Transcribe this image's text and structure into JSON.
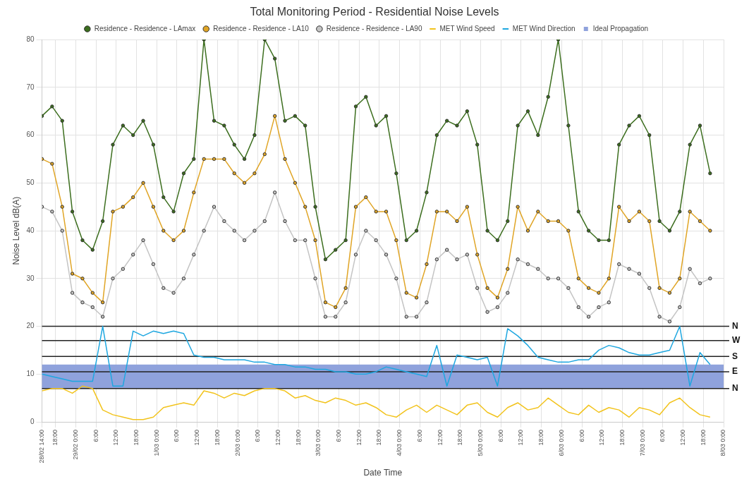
{
  "chart_data": {
    "type": "line",
    "title": "Total Monitoring Period - Residential Noise Levels",
    "xlabel": "Date Time",
    "ylabel": "Noise Level dB(A)",
    "x": [
      "--02-28T14:00",
      "--02-28T17:00",
      "--02-28T20:00",
      "--02-28T23:00",
      "--02-29T02:00",
      "--02-29T05:00",
      "--02-29T08:00",
      "--02-29T11:00",
      "--02-29T14:00",
      "--02-29T17:00",
      "--02-29T20:00",
      "--02-29T23:00",
      "--03-01T02:00",
      "--03-01T05:00",
      "--03-01T08:00",
      "--03-01T11:00",
      "--03-01T14:00",
      "--03-01T17:00",
      "--03-01T20:00",
      "--03-01T23:00",
      "--03-02T02:00",
      "--03-02T05:00",
      "--03-02T08:00",
      "--03-02T11:00",
      "--03-02T14:00",
      "--03-02T17:00",
      "--03-02T20:00",
      "--03-02T23:00",
      "--03-03T02:00",
      "--03-03T05:00",
      "--03-03T08:00",
      "--03-03T11:00",
      "--03-03T14:00",
      "--03-03T17:00",
      "--03-03T20:00",
      "--03-03T23:00",
      "--03-04T02:00",
      "--03-04T05:00",
      "--03-04T08:00",
      "--03-04T11:00",
      "--03-04T14:00",
      "--03-04T17:00",
      "--03-04T20:00",
      "--03-04T23:00",
      "--03-05T02:00",
      "--03-05T05:00",
      "--03-05T08:00",
      "--03-05T11:00",
      "--03-05T14:00",
      "--03-05T17:00",
      "--03-05T20:00",
      "--03-05T23:00",
      "--03-06T02:00",
      "--03-06T05:00",
      "--03-06T08:00",
      "--03-06T11:00",
      "--03-06T14:00",
      "--03-06T17:00",
      "--03-06T20:00",
      "--03-06T23:00",
      "--03-07T02:00",
      "--03-07T05:00",
      "--03-07T08:00",
      "--03-07T11:00",
      "--03-07T14:00",
      "--03-07T17:00",
      "--03-07T20:00"
    ],
    "series": [
      {
        "name": "Residence - Residence - LAmax",
        "color": "#3c6e1e",
        "marker": "circle",
        "values": [
          64,
          66,
          63,
          44,
          38,
          36,
          42,
          58,
          62,
          60,
          63,
          58,
          47,
          44,
          52,
          55,
          80,
          63,
          62,
          58,
          55,
          60,
          80,
          76,
          63,
          64,
          62,
          45,
          34,
          36,
          38,
          66,
          68,
          62,
          64,
          52,
          38,
          40,
          48,
          60,
          63,
          62,
          65,
          58,
          40,
          38,
          42,
          62,
          65,
          60,
          68,
          80,
          62,
          44,
          40,
          38,
          38,
          58,
          62,
          64,
          60,
          42,
          40,
          44,
          58,
          62,
          52
        ]
      },
      {
        "name": "Residence - Residence - LA10",
        "color": "#e0a526",
        "marker": "circle",
        "values": [
          55,
          54,
          45,
          31,
          30,
          27,
          25,
          44,
          45,
          47,
          50,
          45,
          40,
          38,
          40,
          48,
          55,
          55,
          55,
          52,
          50,
          52,
          56,
          64,
          55,
          50,
          45,
          38,
          25,
          24,
          28,
          45,
          47,
          44,
          44,
          38,
          27,
          26,
          33,
          44,
          44,
          42,
          45,
          35,
          28,
          26,
          32,
          45,
          40,
          44,
          42,
          42,
          40,
          30,
          28,
          27,
          30,
          45,
          42,
          44,
          42,
          28,
          27,
          30,
          44,
          42,
          40
        ]
      },
      {
        "name": "Residence - Residence - LA90",
        "color": "#c4c4c4",
        "marker": "circle",
        "values": [
          45,
          44,
          40,
          27,
          25,
          24,
          22,
          30,
          32,
          35,
          38,
          33,
          28,
          27,
          30,
          35,
          40,
          45,
          42,
          40,
          38,
          40,
          42,
          48,
          42,
          38,
          38,
          30,
          22,
          22,
          25,
          35,
          40,
          38,
          35,
          30,
          22,
          22,
          25,
          34,
          36,
          34,
          35,
          28,
          23,
          24,
          27,
          34,
          33,
          32,
          30,
          30,
          28,
          24,
          22,
          24,
          25,
          33,
          32,
          31,
          28,
          22,
          21,
          24,
          32,
          29,
          30
        ]
      },
      {
        "name": "MET Wind Speed",
        "color": "#f2c31c",
        "marker": "none",
        "values": [
          6.5,
          7,
          7,
          6,
          7.5,
          7,
          2.5,
          1.5,
          1,
          0.5,
          0.5,
          1,
          3,
          3.5,
          4,
          3.5,
          6.5,
          6,
          5,
          6,
          5.5,
          6.5,
          7,
          7,
          6.5,
          5,
          5.5,
          4.5,
          4,
          5,
          4.5,
          3.5,
          4,
          3,
          1.5,
          1,
          2.5,
          3.5,
          2,
          3.5,
          2.5,
          1.5,
          3.5,
          4,
          2,
          1,
          3,
          4,
          2.5,
          3,
          5,
          3.5,
          2,
          1.5,
          3.5,
          2,
          3,
          2.5,
          1,
          3,
          2.5,
          1.5,
          4,
          5,
          3,
          1.5,
          1
        ]
      },
      {
        "name": "MET Wind Direction",
        "color": "#1ea7e0",
        "marker": "none",
        "values": [
          10,
          9.5,
          9,
          8.5,
          8.5,
          8.5,
          20,
          7.5,
          7.5,
          19,
          18,
          19,
          18.5,
          19,
          18.5,
          14,
          13.5,
          13.5,
          13,
          13,
          13,
          12.5,
          12.5,
          12,
          12,
          11.5,
          11.5,
          11,
          11,
          10.5,
          10.5,
          10,
          10,
          10.5,
          11.5,
          11,
          10.5,
          10,
          9.5,
          16,
          7.5,
          14,
          13.5,
          13,
          13.5,
          7.5,
          19.5,
          18,
          16,
          13.5,
          13,
          12.5,
          12.5,
          13,
          13,
          15,
          16,
          15.5,
          14.5,
          14,
          14,
          14.5,
          15,
          20,
          7.5,
          14.5,
          12
        ]
      }
    ],
    "xlim": [
      "--02-28T14:00",
      "--03-08T00:00"
    ],
    "xticks": [
      {
        "value": "--02-28T14:00",
        "label": "28/02 14:00"
      },
      {
        "value": "--02-28T18:00",
        "label": "18:00"
      },
      {
        "value": "--02-29T00:00",
        "label": "29/02 0:00"
      },
      {
        "value": "--02-29T06:00",
        "label": "6:00"
      },
      {
        "value": "--02-29T12:00",
        "label": "12:00"
      },
      {
        "value": "--02-29T18:00",
        "label": "18:00"
      },
      {
        "value": "--03-01T00:00",
        "label": "1/03 0:00"
      },
      {
        "value": "--03-01T06:00",
        "label": "6:00"
      },
      {
        "value": "--03-01T12:00",
        "label": "12:00"
      },
      {
        "value": "--03-01T18:00",
        "label": "18:00"
      },
      {
        "value": "--03-02T00:00",
        "label": "2/03 0:00"
      },
      {
        "value": "--03-02T06:00",
        "label": "6:00"
      },
      {
        "value": "--03-02T12:00",
        "label": "12:00"
      },
      {
        "value": "--03-02T18:00",
        "label": "18:00"
      },
      {
        "value": "--03-03T00:00",
        "label": "3/03 0:00"
      },
      {
        "value": "--03-03T06:00",
        "label": "6:00"
      },
      {
        "value": "--03-03T12:00",
        "label": "12:00"
      },
      {
        "value": "--03-03T18:00",
        "label": "18:00"
      },
      {
        "value": "--03-04T00:00",
        "label": "4/03 0:00"
      },
      {
        "value": "--03-04T06:00",
        "label": "6:00"
      },
      {
        "value": "--03-04T12:00",
        "label": "12:00"
      },
      {
        "value": "--03-04T18:00",
        "label": "18:00"
      },
      {
        "value": "--03-05T00:00",
        "label": "5/03 0:00"
      },
      {
        "value": "--03-05T06:00",
        "label": "6:00"
      },
      {
        "value": "--03-05T12:00",
        "label": "12:00"
      },
      {
        "value": "--03-05T18:00",
        "label": "18:00"
      },
      {
        "value": "--03-06T00:00",
        "label": "6/03 0:00"
      },
      {
        "value": "--03-06T06:00",
        "label": "6:00"
      },
      {
        "value": "--03-06T12:00",
        "label": "12:00"
      },
      {
        "value": "--03-06T18:00",
        "label": "18:00"
      },
      {
        "value": "--03-07T00:00",
        "label": "7/03 0:00"
      },
      {
        "value": "--03-07T06:00",
        "label": "6:00"
      },
      {
        "value": "--03-07T12:00",
        "label": "12:00"
      },
      {
        "value": "--03-07T18:00",
        "label": "18:00"
      },
      {
        "value": "--03-08T00:00",
        "label": "8/03 0:00"
      }
    ],
    "ylim": [
      0,
      80
    ],
    "yticks": [
      0,
      10,
      20,
      30,
      40,
      50,
      60,
      70,
      80
    ],
    "ref_lines": [
      {
        "axis": "y",
        "value": 20,
        "label": "N",
        "color": "#222222"
      },
      {
        "axis": "y",
        "value": 17,
        "label": "W",
        "color": "#222222"
      },
      {
        "axis": "y",
        "value": 13.7,
        "label": "S",
        "color": "#222222"
      },
      {
        "axis": "y",
        "value": 10.5,
        "label": "E",
        "color": "#222222"
      },
      {
        "axis": "y",
        "value": 7,
        "label": "N",
        "color": "#222222"
      }
    ],
    "bands": [
      {
        "axis": "y",
        "from": 7,
        "to": 12,
        "label": "Ideal Propagation",
        "color": "#8fa2dc"
      }
    ],
    "grid": true,
    "legend": "top",
    "line_style": "solid"
  }
}
